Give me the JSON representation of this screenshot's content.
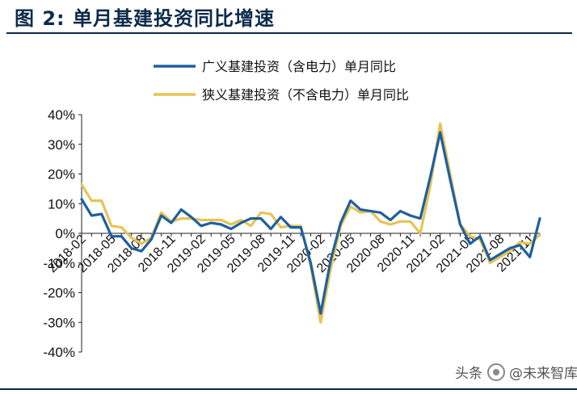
{
  "figure": {
    "title": "图  2:  单月基建投资同比增速"
  },
  "watermark": {
    "prefix": "头条",
    "handle": "@未来智库"
  },
  "chart_data": {
    "type": "line",
    "title": "",
    "xlabel": "",
    "ylabel": "",
    "ylim": [
      -40,
      40
    ],
    "y_ticks": [
      "40%",
      "30%",
      "20%",
      "10%",
      "0%",
      "-10%",
      "-20%",
      "-30%",
      "-40%"
    ],
    "y_tick_values": [
      40,
      30,
      20,
      10,
      0,
      -10,
      -20,
      -30,
      -40
    ],
    "x": [
      "2018-02",
      "2018-03",
      "2018-04",
      "2018-05",
      "2018-06",
      "2018-07",
      "2018-08",
      "2018-09",
      "2018-10",
      "2018-11",
      "2018-12",
      "2019-01",
      "2019-02",
      "2019-03",
      "2019-04",
      "2019-05",
      "2019-06",
      "2019-07",
      "2019-08",
      "2019-09",
      "2019-10",
      "2019-11",
      "2019-12",
      "2020-01",
      "2020-02",
      "2020-03",
      "2020-04",
      "2020-05",
      "2020-06",
      "2020-07",
      "2020-08",
      "2020-09",
      "2020-10",
      "2020-11",
      "2020-12",
      "2021-01",
      "2021-02",
      "2021-03",
      "2021-04",
      "2021-05",
      "2021-06",
      "2021-07",
      "2021-08",
      "2021-09",
      "2021-10",
      "2021-11",
      "2021-12"
    ],
    "x_tick_labels": [
      "2018-02",
      "2018-05",
      "2018-08",
      "2018-11",
      "2019-02",
      "2019-05",
      "2019-08",
      "2019-11",
      "2020-02",
      "2020-05",
      "2020-08",
      "2020-11",
      "2021-02",
      "2021-05",
      "2021-08",
      "2021-11"
    ],
    "legend_position": "top",
    "grid": false,
    "series": [
      {
        "name": "广义基建投资（含电力）单月同比",
        "color": "#1f5fa0",
        "values": [
          11.5,
          6,
          6.5,
          -1,
          -1,
          -5,
          -6,
          -2,
          6,
          3.5,
          8,
          5.5,
          2.5,
          3.5,
          3,
          1.5,
          3.5,
          5,
          5,
          1.5,
          5.5,
          2,
          2,
          -10,
          -27,
          -9,
          3.5,
          11,
          8,
          7.5,
          7,
          4.5,
          7.5,
          6,
          5,
          19,
          34,
          18,
          3,
          -3.5,
          -1,
          -9,
          -7,
          -5,
          -4,
          -8,
          5
        ]
      },
      {
        "name": "狭义基建投资（不含电力）单月同比",
        "color": "#e6c455",
        "values": [
          16.5,
          11,
          11,
          2.5,
          2,
          -1.5,
          -3.5,
          -1.5,
          7,
          4,
          5,
          5,
          4.5,
          4.5,
          4.5,
          3,
          4.5,
          2.5,
          7,
          6.5,
          2,
          2.5,
          2.5,
          -11,
          -30,
          -12,
          2.5,
          9,
          7,
          7.5,
          4,
          3,
          4,
          4,
          0,
          16,
          37,
          20,
          3,
          -1,
          -2,
          -10,
          -8,
          -6,
          -3,
          -3.5,
          -0.5
        ]
      }
    ]
  }
}
